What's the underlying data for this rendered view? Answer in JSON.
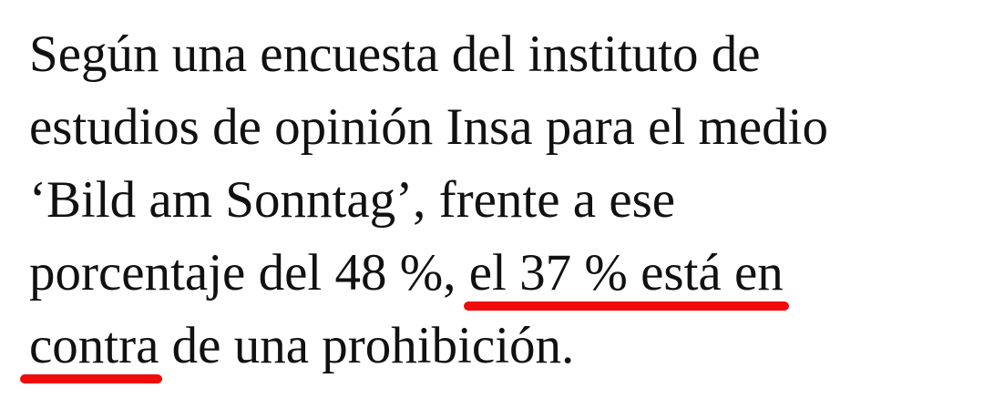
{
  "paragraph": {
    "lines": [
      [
        "Según una encuesta del instituto de"
      ],
      [
        "estudios de opinión Insa para el medio"
      ],
      [
        "‘Bild am Sonntag’, frente a ese"
      ],
      [
        "porcentaje del 48 %, ",
        "el 37 % está en"
      ],
      [
        "contra",
        " de una prohibición."
      ]
    ]
  }
}
